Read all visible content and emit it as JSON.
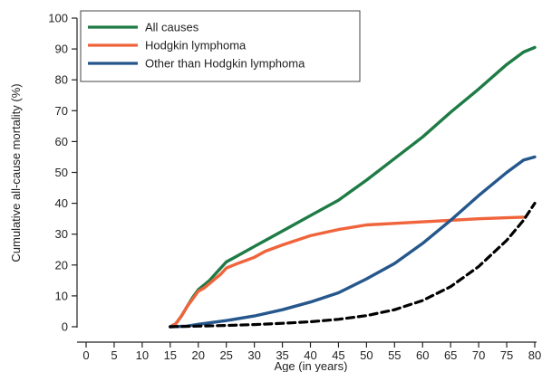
{
  "chart_data": {
    "type": "line",
    "xlabel": "Age (in years)",
    "ylabel": "Cumulative all-cause mortality (%)",
    "xlim": [
      0,
      80
    ],
    "ylim": [
      0,
      100
    ],
    "x_ticks": [
      0,
      5,
      10,
      15,
      20,
      25,
      30,
      35,
      40,
      45,
      50,
      55,
      60,
      65,
      70,
      75,
      80
    ],
    "y_ticks": [
      0,
      10,
      20,
      30,
      40,
      50,
      60,
      70,
      80,
      90,
      100
    ],
    "grid": false,
    "legend_position": "top-left",
    "series": [
      {
        "name": "All causes",
        "color": "#1e7b45",
        "dash": "solid",
        "x": [
          15,
          16,
          17,
          18,
          19,
          20,
          21,
          22,
          23,
          24,
          25,
          27,
          30,
          32,
          35,
          40,
          45,
          50,
          55,
          60,
          65,
          70,
          75,
          78,
          80
        ],
        "y": [
          0,
          1,
          3.5,
          6.5,
          9.5,
          12,
          13.5,
          15,
          17,
          19,
          21,
          23,
          26,
          28,
          31,
          36,
          41,
          47.5,
          54.5,
          61.5,
          69.5,
          77,
          85,
          89,
          90.5
        ]
      },
      {
        "name": "Hodgkin lymphoma",
        "color": "#f0643c",
        "dash": "solid",
        "x": [
          15,
          16,
          17,
          18,
          19,
          20,
          21,
          22,
          23,
          24,
          25,
          27,
          30,
          32,
          35,
          40,
          45,
          50,
          55,
          60,
          65,
          70,
          75,
          78
        ],
        "y": [
          0,
          1,
          3.5,
          6.5,
          9,
          11.5,
          12.5,
          14,
          15.5,
          17,
          19,
          20.5,
          22.5,
          24.5,
          26.5,
          29.5,
          31.5,
          33,
          33.5,
          34,
          34.5,
          35,
          35.3,
          35.5
        ]
      },
      {
        "name": "Other than Hodgkin lymphoma",
        "color": "#25578c",
        "dash": "solid",
        "x": [
          15,
          18,
          20,
          25,
          30,
          35,
          40,
          45,
          50,
          55,
          60,
          65,
          70,
          75,
          78,
          80
        ],
        "y": [
          0,
          0.2,
          0.8,
          2,
          3.5,
          5.5,
          8,
          11,
          15.5,
          20.5,
          27,
          34.5,
          42.5,
          50,
          54,
          55
        ]
      },
      {
        "color": "#000000",
        "dash": "dashed",
        "x": [
          15,
          20,
          25,
          30,
          35,
          40,
          45,
          50,
          55,
          60,
          65,
          70,
          75,
          78,
          80
        ],
        "y": [
          0,
          0.2,
          0.4,
          0.7,
          1.1,
          1.6,
          2.4,
          3.6,
          5.5,
          8.5,
          13,
          19.5,
          28,
          34.5,
          40
        ]
      }
    ]
  }
}
